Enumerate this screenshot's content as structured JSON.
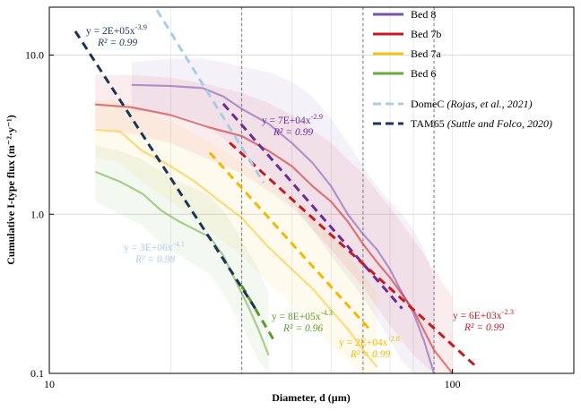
{
  "chart_data": {
    "type": "line",
    "xlabel": "Diameter, d (µm)",
    "ylabel": "Cumulative I-type flux (m⁻²·y⁻¹)",
    "xscale": "log",
    "yscale": "log",
    "xlim": [
      10,
      200
    ],
    "ylim": [
      0.1,
      20
    ],
    "x_ticks": [
      "10",
      "100"
    ],
    "y_ticks": [
      "0.1",
      "1.0",
      "10.0"
    ],
    "vertical_reference_lines": [
      30,
      60,
      90
    ],
    "legend_position": "top-right",
    "series": [
      {
        "name": "Bed 8",
        "color": "#7B4FB5",
        "x": [
          16,
          20,
          24,
          27,
          30,
          35,
          40,
          45,
          50,
          55,
          60,
          65,
          70,
          75,
          80,
          85,
          90
        ],
        "y": [
          6.5,
          6.4,
          6.2,
          5.5,
          4.6,
          3.7,
          2.8,
          2.1,
          1.5,
          1.0,
          0.75,
          0.6,
          0.45,
          0.32,
          0.24,
          0.16,
          0.1
        ],
        "band_lower": [
          4.5,
          4.3,
          3.8,
          3.0,
          2.4,
          1.8,
          1.2,
          0.8,
          0.55,
          0.4,
          0.3,
          0.22,
          0.16,
          0.12,
          0.1,
          0.1,
          0.1
        ],
        "band_upper": [
          9.0,
          9.5,
          9.5,
          9.0,
          8.5,
          7.8,
          6.8,
          5.5,
          4.0,
          2.8,
          2.0,
          1.5,
          1.2,
          1.0,
          0.8,
          0.6,
          0.4
        ]
      },
      {
        "name": "Bed 7b",
        "color": "#C8191E",
        "x": [
          13,
          16,
          20,
          25,
          30,
          35,
          40,
          45,
          50,
          55,
          60,
          65,
          70,
          80,
          90,
          100
        ],
        "y": [
          4.9,
          4.7,
          4.2,
          3.5,
          3.1,
          2.5,
          2.0,
          1.5,
          1.2,
          0.9,
          0.65,
          0.5,
          0.4,
          0.25,
          0.14,
          0.1
        ],
        "band_lower": [
          3.5,
          3.2,
          2.8,
          2.2,
          1.8,
          1.4,
          1.1,
          0.8,
          0.6,
          0.45,
          0.35,
          0.26,
          0.2,
          0.13,
          0.1,
          0.1
        ],
        "band_upper": [
          7.5,
          7.5,
          7.2,
          6.5,
          5.8,
          5.0,
          4.2,
          3.4,
          2.8,
          2.2,
          1.8,
          1.4,
          1.1,
          0.7,
          0.45,
          0.3
        ]
      },
      {
        "name": "Bed 7a",
        "color": "#F5C21A",
        "x": [
          13,
          15,
          17,
          20,
          23,
          26,
          30,
          35,
          40,
          45,
          50,
          55,
          60,
          65
        ],
        "y": [
          3.4,
          3.3,
          2.5,
          2.0,
          1.6,
          1.25,
          0.95,
          0.62,
          0.45,
          0.34,
          0.25,
          0.19,
          0.14,
          0.11
        ],
        "band_lower": [
          2.3,
          2.1,
          1.6,
          1.2,
          0.95,
          0.72,
          0.55,
          0.37,
          0.27,
          0.2,
          0.15,
          0.12,
          0.1,
          0.1
        ],
        "band_upper": [
          5.2,
          5.2,
          4.5,
          3.8,
          3.2,
          2.7,
          2.1,
          1.6,
          1.2,
          0.95,
          0.72,
          0.56,
          0.42,
          0.32
        ]
      },
      {
        "name": "Bed 6",
        "color": "#6AAA3A",
        "x": [
          13,
          15,
          17,
          19,
          21,
          23,
          25,
          27,
          29,
          31,
          33,
          35
        ],
        "y": [
          1.85,
          1.6,
          1.35,
          1.05,
          0.9,
          0.8,
          0.72,
          0.55,
          0.38,
          0.27,
          0.19,
          0.13
        ],
        "band_lower": [
          1.2,
          1.0,
          0.85,
          0.65,
          0.55,
          0.48,
          0.42,
          0.32,
          0.23,
          0.17,
          0.12,
          0.1
        ],
        "band_upper": [
          2.7,
          2.5,
          2.2,
          1.85,
          1.6,
          1.45,
          1.3,
          1.05,
          0.8,
          0.6,
          0.45,
          0.32
        ]
      }
    ],
    "fits": [
      {
        "series": "Bed 8",
        "x_range": [
          27,
          75
        ],
        "equation_base": "y = 7E+04x",
        "equation_exp": "-2.9",
        "r2": "R² = 0.99",
        "color": "#6A2C9A"
      },
      {
        "series": "Bed 7b",
        "x_range": [
          28,
          115
        ],
        "equation_base": "y = 6E+03x",
        "equation_exp": "-2.3",
        "r2": "R² = 0.99",
        "color": "#C8191E"
      },
      {
        "series": "Bed 7a",
        "x_range": [
          25,
          62
        ],
        "equation_base": "y = 2E+04x",
        "equation_exp": "-2.8",
        "r2": "R² = 0.99",
        "color": "#F5B800"
      },
      {
        "series": "Bed 6",
        "x_range": [
          30,
          36
        ],
        "equation_base": "y = 8E+05x",
        "equation_exp": "-4.3",
        "r2": "R² = 0.96",
        "color": "#5A9A30"
      },
      {
        "series": "DomeC",
        "x_range": [
          13,
          34
        ],
        "equation_base": "y = 3E+06x",
        "equation_exp": "-4.1",
        "r2": "R² = 0.98",
        "color": "#A8CDEA"
      },
      {
        "series": "TAM65",
        "x_range": [
          11.6,
          33
        ],
        "equation_base": "y = 2E+05x",
        "equation_exp": "-3.9",
        "r2": "R² = 0.99",
        "color": "#1B3459"
      }
    ],
    "legend": [
      {
        "label": "Bed 8",
        "style": "solid",
        "color": "#7B4FB5"
      },
      {
        "label": "Bed 7b",
        "style": "solid",
        "color": "#C8191E"
      },
      {
        "label": "Bed 7a",
        "style": "solid",
        "color": "#F5C21A"
      },
      {
        "label": "Bed 6",
        "style": "solid",
        "color": "#6AAA3A"
      },
      {
        "label": "DomeC",
        "cite": "(Rojas, et al., 2021)",
        "style": "dashed",
        "color": "#A8CDEA"
      },
      {
        "label": "TAM65",
        "cite": "(Suttle and Folco, 2020)",
        "style": "dashed",
        "color": "#1B3459"
      }
    ]
  }
}
